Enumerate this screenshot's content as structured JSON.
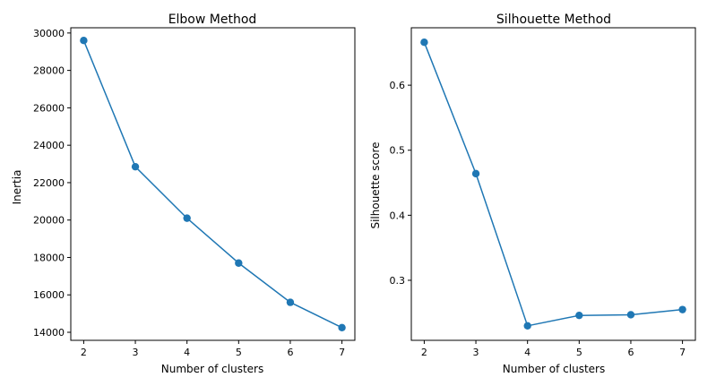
{
  "colors": {
    "series": "#1f77b4",
    "axis": "#000000",
    "background": "#ffffff"
  },
  "chart_data": [
    {
      "type": "line",
      "title": "Elbow Method",
      "xlabel": "Number of clusters",
      "ylabel": "Inertia",
      "grid": false,
      "marker": "circle",
      "x": [
        2,
        3,
        4,
        5,
        6,
        7
      ],
      "y": [
        29600,
        22850,
        20100,
        17700,
        15600,
        14250
      ],
      "xlim": [
        1.75,
        7.25
      ],
      "ylim": [
        13570,
        30280
      ],
      "xticks": [
        2,
        3,
        4,
        5,
        6,
        7
      ],
      "xtick_labels": [
        "2",
        "3",
        "4",
        "5",
        "6",
        "7"
      ],
      "yticks": [
        14000,
        16000,
        18000,
        20000,
        22000,
        24000,
        26000,
        28000,
        30000
      ],
      "ytick_labels": [
        "14000",
        "16000",
        "18000",
        "20000",
        "22000",
        "24000",
        "26000",
        "28000",
        "30000"
      ]
    },
    {
      "type": "line",
      "title": "Silhouette Method",
      "xlabel": "Number of clusters",
      "ylabel": "Silhouette score",
      "grid": false,
      "marker": "circle",
      "x": [
        2,
        3,
        4,
        5,
        6,
        7
      ],
      "y": [
        0.666,
        0.464,
        0.23,
        0.246,
        0.247,
        0.255
      ],
      "xlim": [
        1.75,
        7.25
      ],
      "ylim": [
        0.2077,
        0.6883
      ],
      "xticks": [
        2,
        3,
        4,
        5,
        6,
        7
      ],
      "xtick_labels": [
        "2",
        "3",
        "4",
        "5",
        "6",
        "7"
      ],
      "yticks": [
        0.3,
        0.4,
        0.5,
        0.6
      ],
      "ytick_labels": [
        "0.3",
        "0.4",
        "0.5",
        "0.6"
      ]
    }
  ]
}
